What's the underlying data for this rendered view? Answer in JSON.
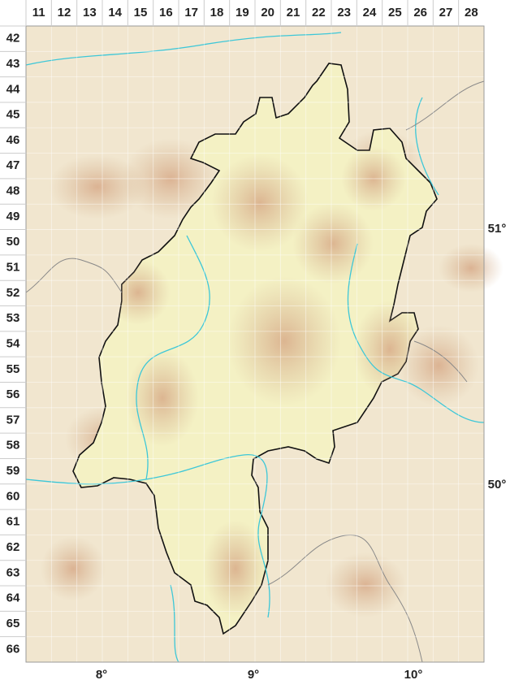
{
  "columns": [
    "11",
    "12",
    "13",
    "14",
    "15",
    "16",
    "17",
    "18",
    "19",
    "20",
    "21",
    "22",
    "23",
    "24",
    "25",
    "26",
    "27",
    "28"
  ],
  "rows": [
    "42",
    "43",
    "44",
    "45",
    "46",
    "47",
    "48",
    "49",
    "50",
    "51",
    "52",
    "53",
    "54",
    "55",
    "56",
    "57",
    "58",
    "59",
    "60",
    "61",
    "62",
    "63",
    "64",
    "65",
    "66"
  ],
  "longitudes": [
    "8°",
    "9°",
    "10°"
  ],
  "latitudes": [
    "51°",
    "50°"
  ]
}
